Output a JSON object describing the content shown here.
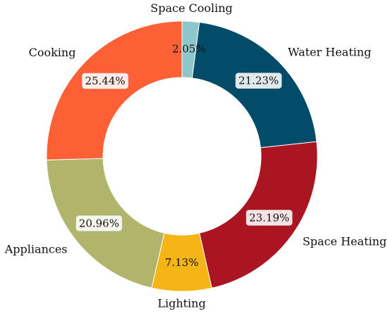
{
  "chart_data": {
    "type": "pie",
    "donut": true,
    "title": "",
    "start_angle_deg": 90,
    "direction": "clockwise",
    "slices": [
      {
        "label": "Space Cooling",
        "value": 2.05,
        "display": "2.05%",
        "color": "#8ec7cb",
        "boxed": false
      },
      {
        "label": "Water Heating",
        "value": 21.23,
        "display": "21.23%",
        "color": "#034c69",
        "boxed": true
      },
      {
        "label": "Space Heating",
        "value": 23.19,
        "display": "23.19%",
        "color": "#ab1522",
        "boxed": true
      },
      {
        "label": "Lighting",
        "value": 7.13,
        "display": "7.13%",
        "color": "#f5b516",
        "boxed": false
      },
      {
        "label": "Appliances",
        "value": 20.96,
        "display": "20.96%",
        "color": "#b0b56b",
        "boxed": true
      },
      {
        "label": "Cooking",
        "value": 25.44,
        "display": "25.44%",
        "color": "#fc6034",
        "boxed": true
      }
    ]
  }
}
